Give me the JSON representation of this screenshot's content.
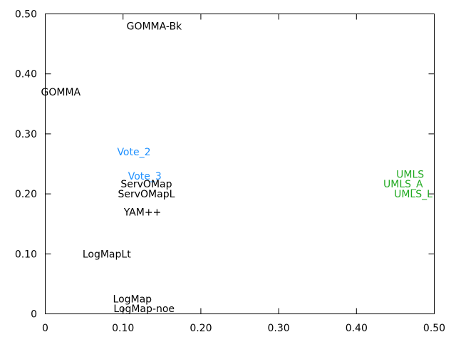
{
  "chart_data": {
    "type": "scatter",
    "title": "",
    "xlabel": "",
    "ylabel": "",
    "xlim": [
      0,
      0.5
    ],
    "ylim": [
      0,
      0.5
    ],
    "grid": false,
    "x_ticks": [
      {
        "value": 0,
        "label": "0"
      },
      {
        "value": 0.1,
        "label": "0.10"
      },
      {
        "value": 0.2,
        "label": "0.20"
      },
      {
        "value": 0.3,
        "label": "0.30"
      },
      {
        "value": 0.4,
        "label": "0.40"
      },
      {
        "value": 0.5,
        "label": "0.50"
      }
    ],
    "y_ticks": [
      {
        "value": 0,
        "label": "0"
      },
      {
        "value": 0.1,
        "label": "0.10"
      },
      {
        "value": 0.2,
        "label": "0.20"
      },
      {
        "value": 0.3,
        "label": "0.30"
      },
      {
        "value": 0.4,
        "label": "0.40"
      },
      {
        "value": 0.5,
        "label": "0.50"
      }
    ],
    "points": [
      {
        "label": "GOMMA-Bk",
        "x": 0.14,
        "y": 0.48,
        "color": "#000000"
      },
      {
        "label": "GOMMA",
        "x": 0.02,
        "y": 0.37,
        "color": "#000000"
      },
      {
        "label": "Vote_2",
        "x": 0.114,
        "y": 0.27,
        "color": "#1e90ff"
      },
      {
        "label": "Vote_3",
        "x": 0.128,
        "y": 0.23,
        "color": "#1e90ff"
      },
      {
        "label": "ServOMap",
        "x": 0.13,
        "y": 0.217,
        "color": "#000000"
      },
      {
        "label": "ServOMapL",
        "x": 0.13,
        "y": 0.2,
        "color": "#000000"
      },
      {
        "label": "YAM++",
        "x": 0.125,
        "y": 0.17,
        "color": "#000000"
      },
      {
        "label": "LogMapLt",
        "x": 0.079,
        "y": 0.1,
        "color": "#000000"
      },
      {
        "label": "LogMap",
        "x": 0.112,
        "y": 0.025,
        "color": "#000000"
      },
      {
        "label": "LogMap-noe",
        "x": 0.127,
        "y": 0.009,
        "color": "#000000"
      },
      {
        "label": "UMLS",
        "x": 0.469,
        "y": 0.233,
        "color": "#22aa22"
      },
      {
        "label": "UMLS_A",
        "x": 0.46,
        "y": 0.217,
        "color": "#22aa22"
      },
      {
        "label": "UMLS_L",
        "x": 0.473,
        "y": 0.2,
        "color": "#22aa22"
      }
    ]
  }
}
